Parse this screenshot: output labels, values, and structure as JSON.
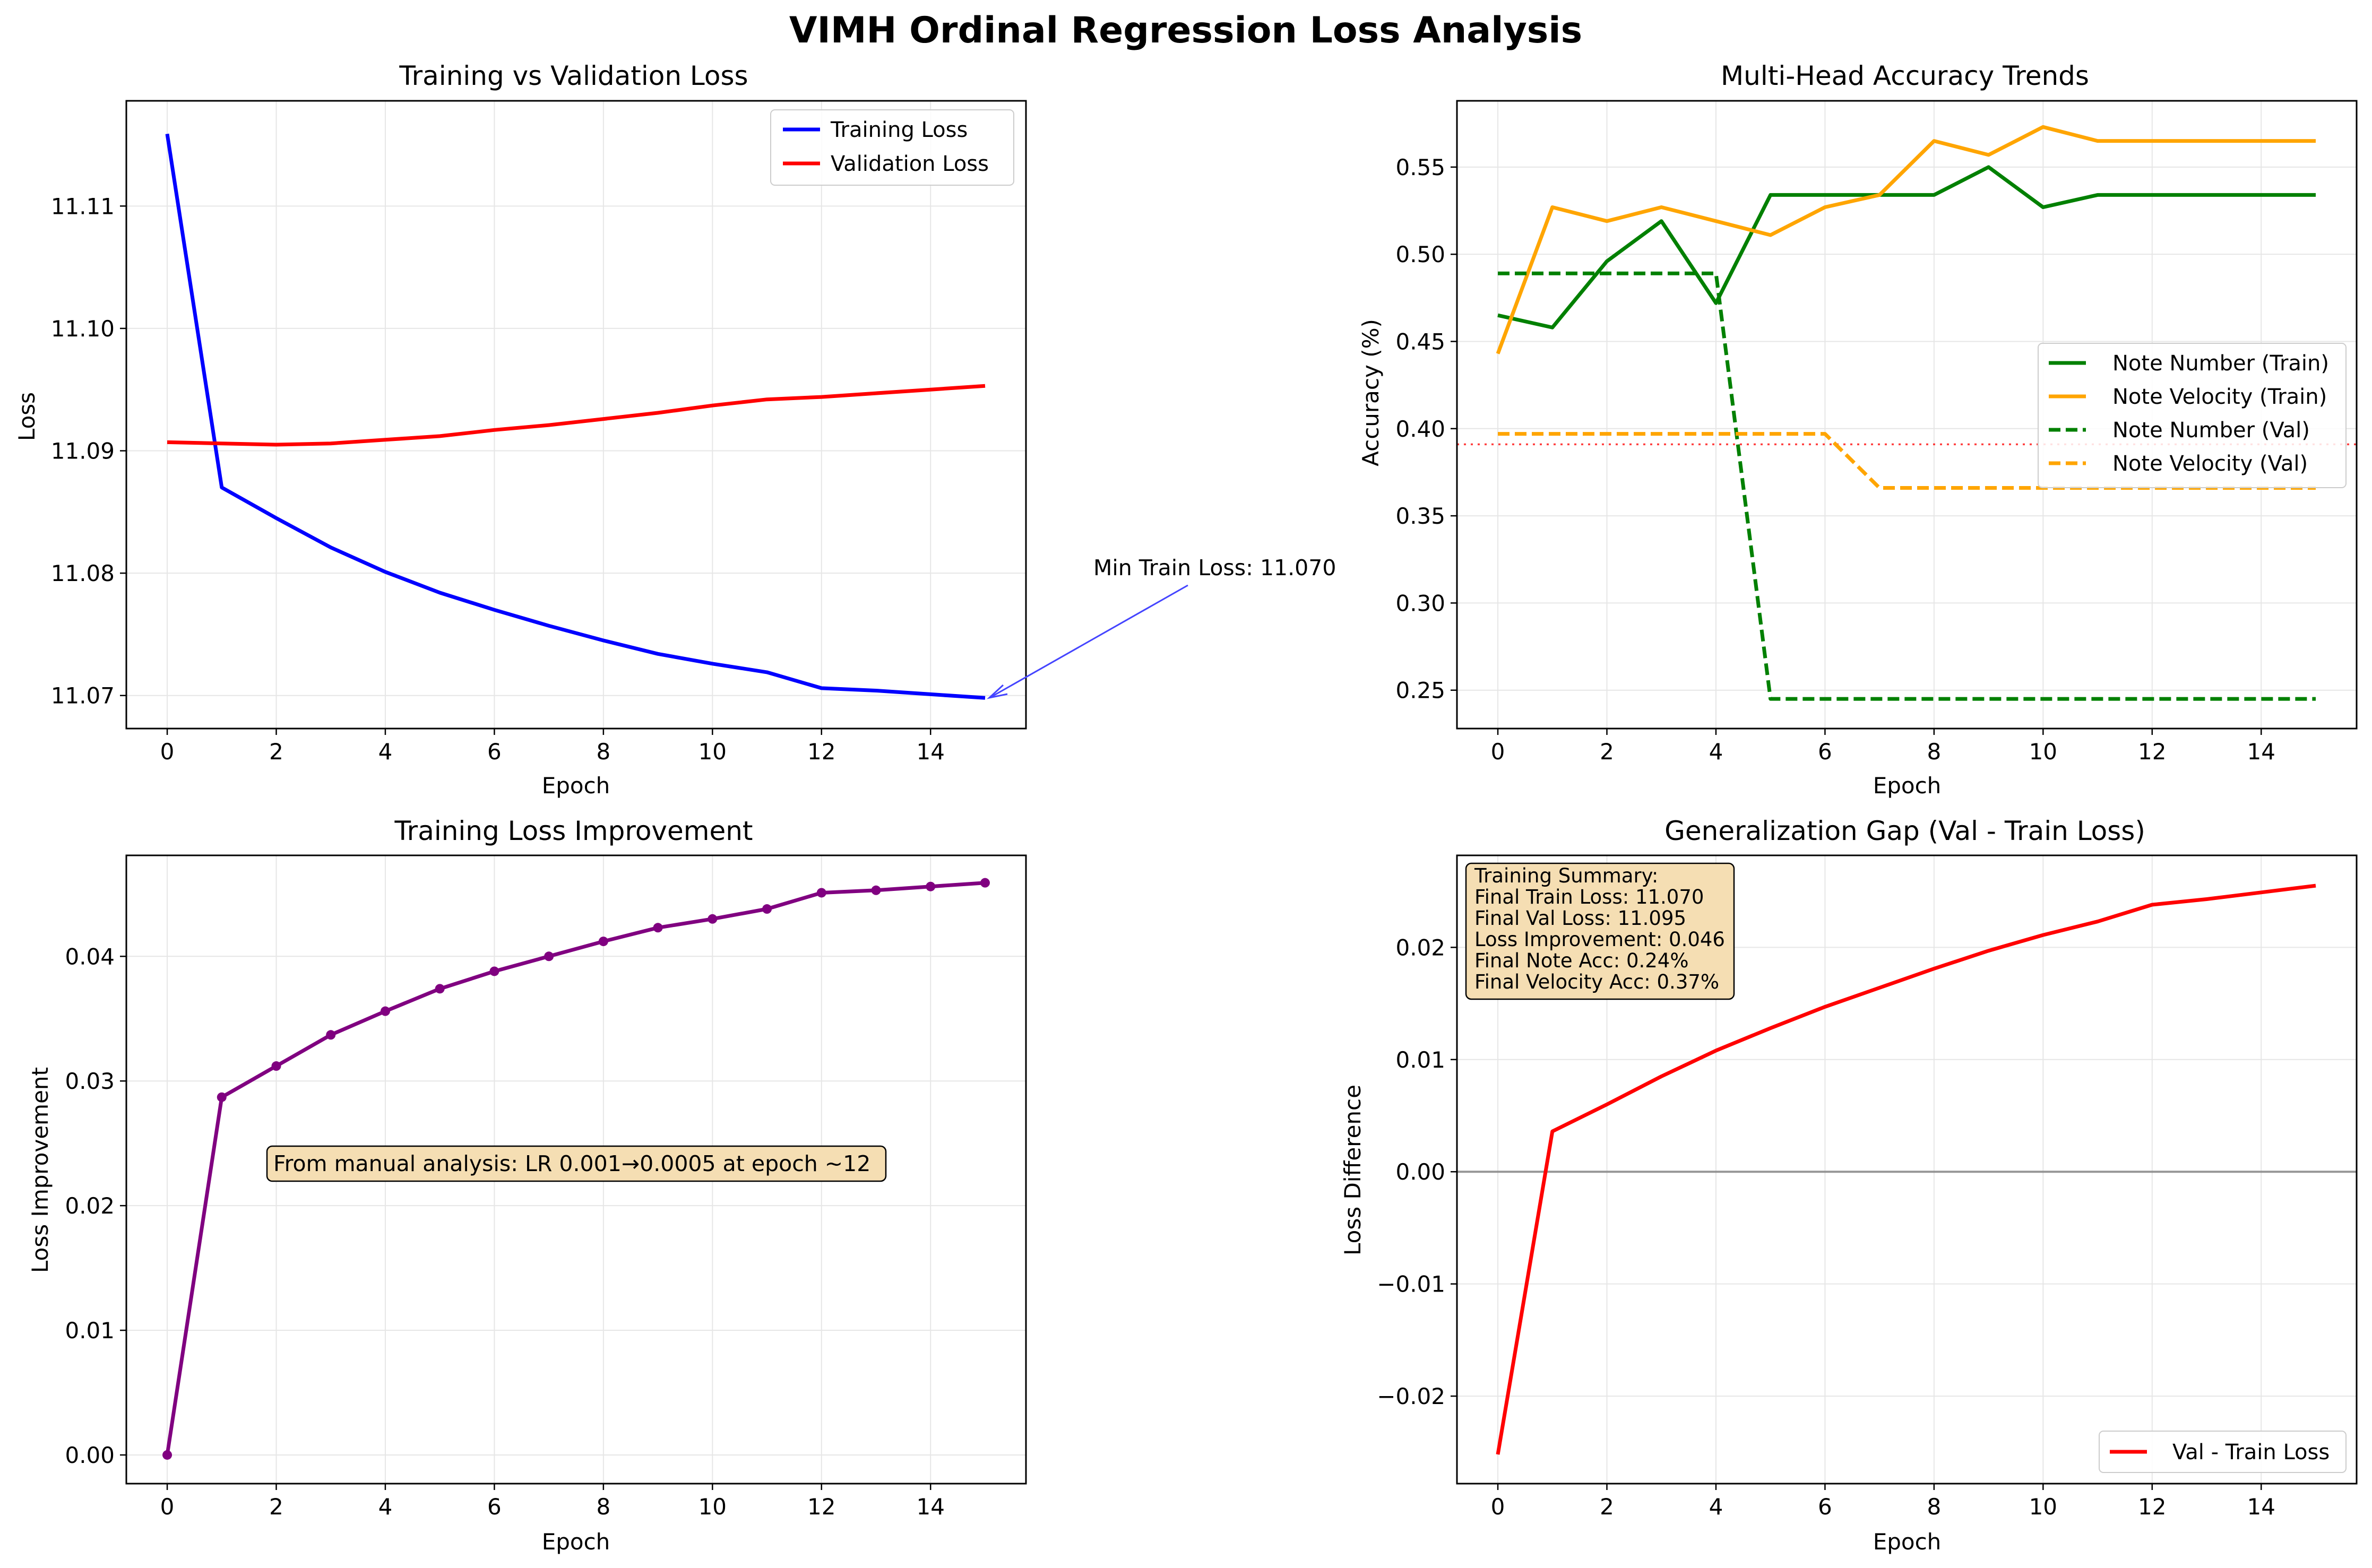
{
  "figure": {
    "title": "VIMH Ordinal Regression Loss Analysis"
  },
  "chart_data": [
    {
      "type": "line",
      "title": "Training vs Validation Loss",
      "xlabel": "Epoch",
      "ylabel": "Loss",
      "xlim": [
        -0.75,
        15.75
      ],
      "ylim": [
        11.0673,
        11.1186
      ],
      "xticks": [
        0,
        2,
        4,
        6,
        8,
        10,
        12,
        14
      ],
      "yticks": [
        11.07,
        11.08,
        11.09,
        11.1,
        11.11
      ],
      "ytick_labels": [
        "11.07",
        "11.08",
        "11.09",
        "11.10",
        "11.11"
      ],
      "grid": true,
      "legend": "upper right",
      "x": [
        0,
        1,
        2,
        3,
        4,
        5,
        6,
        7,
        8,
        9,
        10,
        11,
        12,
        13,
        14,
        15
      ],
      "series": [
        {
          "name": "Training Loss",
          "color": "#0000ff",
          "style": "solid",
          "values": [
            11.1159,
            11.087,
            11.0845,
            11.0821,
            11.0801,
            11.0784,
            11.077,
            11.0757,
            11.0745,
            11.0734,
            11.0726,
            11.0719,
            11.0706,
            11.0704,
            11.0701,
            11.0698
          ]
        },
        {
          "name": "Validation Loss",
          "color": "#ff0000",
          "style": "solid",
          "values": [
            11.0907,
            11.0906,
            11.0905,
            11.0906,
            11.0909,
            11.0912,
            11.0917,
            11.0921,
            11.0926,
            11.0931,
            11.0937,
            11.0942,
            11.0944,
            11.0947,
            11.095,
            11.0953
          ]
        }
      ],
      "annotation": {
        "text": "Min Train Loss: 11.070",
        "point": [
          15,
          11.0698
        ],
        "color": "#4444ff"
      }
    },
    {
      "type": "line",
      "title": "Multi-Head Accuracy Trends",
      "xlabel": "Epoch",
      "ylabel": "Accuracy (%)",
      "xlim": [
        -0.75,
        15.75
      ],
      "ylim": [
        0.228,
        0.588
      ],
      "xticks": [
        0,
        2,
        4,
        6,
        8,
        10,
        12,
        14
      ],
      "yticks": [
        0.25,
        0.3,
        0.35,
        0.4,
        0.45,
        0.5,
        0.55
      ],
      "ytick_labels": [
        "0.25",
        "0.30",
        "0.35",
        "0.40",
        "0.45",
        "0.50",
        "0.55"
      ],
      "grid": true,
      "legend": "center right",
      "x": [
        0,
        1,
        2,
        3,
        4,
        5,
        6,
        7,
        8,
        9,
        10,
        11,
        12,
        13,
        14,
        15
      ],
      "series": [
        {
          "name": "Note Number (Train)",
          "color": "#008000",
          "style": "solid",
          "values": [
            0.465,
            0.458,
            0.496,
            0.519,
            0.472,
            0.534,
            0.534,
            0.534,
            0.534,
            0.55,
            0.527,
            0.534,
            0.534,
            0.534,
            0.534,
            0.534
          ]
        },
        {
          "name": "Note Velocity (Train)",
          "color": "#ffa500",
          "style": "solid",
          "values": [
            0.443,
            0.527,
            0.519,
            0.527,
            0.519,
            0.511,
            0.527,
            0.534,
            0.565,
            0.557,
            0.573,
            0.565,
            0.565,
            0.565,
            0.565,
            0.565
          ]
        },
        {
          "name": "Note Number (Val)",
          "color": "#008000",
          "style": "dashed",
          "values": [
            0.489,
            0.489,
            0.489,
            0.489,
            0.489,
            0.245,
            0.245,
            0.245,
            0.245,
            0.245,
            0.245,
            0.245,
            0.245,
            0.245,
            0.245,
            0.245
          ]
        },
        {
          "name": "Note Velocity (Val)",
          "color": "#ffa500",
          "style": "dashed",
          "values": [
            0.397,
            0.397,
            0.397,
            0.397,
            0.397,
            0.397,
            0.397,
            0.366,
            0.366,
            0.366,
            0.366,
            0.366,
            0.366,
            0.366,
            0.366,
            0.366
          ]
        }
      ],
      "reference_line": {
        "y": 0.391,
        "color": "#ff0000",
        "style": "dotted"
      }
    },
    {
      "type": "line",
      "title": "Training Loss Improvement",
      "xlabel": "Epoch",
      "ylabel": "Loss Improvement",
      "xlim": [
        -0.75,
        15.75
      ],
      "ylim": [
        -0.0023,
        0.0481
      ],
      "xticks": [
        0,
        2,
        4,
        6,
        8,
        10,
        12,
        14
      ],
      "yticks": [
        0.0,
        0.01,
        0.02,
        0.03,
        0.04
      ],
      "ytick_labels": [
        "0.00",
        "0.01",
        "0.02",
        "0.03",
        "0.04"
      ],
      "grid": true,
      "x": [
        0,
        1,
        2,
        3,
        4,
        5,
        6,
        7,
        8,
        9,
        10,
        11,
        12,
        13,
        14,
        15
      ],
      "series": [
        {
          "color": "#800080",
          "style": "solid",
          "markers": true,
          "values": [
            0.0,
            0.0287,
            0.0312,
            0.0337,
            0.0356,
            0.0374,
            0.0388,
            0.04,
            0.0412,
            0.0423,
            0.043,
            0.0438,
            0.0451,
            0.0453,
            0.0456,
            0.0459
          ]
        }
      ],
      "annotation": {
        "text": "From manual analysis: LR 0.001→0.0005 at epoch ~12",
        "position": "center-left"
      }
    },
    {
      "type": "line",
      "title": "Generalization Gap (Val - Train Loss)",
      "xlabel": "Epoch",
      "ylabel": "Loss Difference",
      "xlim": [
        -0.75,
        15.75
      ],
      "ylim": [
        -0.0278,
        0.0282
      ],
      "xticks": [
        0,
        2,
        4,
        6,
        8,
        10,
        12,
        14
      ],
      "yticks": [
        -0.02,
        -0.01,
        0.0,
        0.01,
        0.02
      ],
      "ytick_labels": [
        "−0.02",
        "−0.01",
        "0.00",
        "0.01",
        "0.02"
      ],
      "grid": true,
      "legend": "lower right",
      "x": [
        0,
        1,
        2,
        3,
        4,
        5,
        6,
        7,
        8,
        9,
        10,
        11,
        12,
        13,
        14,
        15
      ],
      "series": [
        {
          "name": "Val - Train Loss",
          "color": "#ff0000",
          "style": "solid",
          "values": [
            -0.0252,
            0.0036,
            0.006,
            0.0085,
            0.0108,
            0.0128,
            0.0147,
            0.0164,
            0.0181,
            0.0197,
            0.0211,
            0.0223,
            0.0238,
            0.0243,
            0.0249,
            0.0255
          ]
        }
      ],
      "zero_line": {
        "y": 0.0,
        "color": "#808080"
      },
      "summary_box": {
        "lines": [
          "Training Summary:",
          "Final Train Loss: 11.070",
          "Final Val Loss: 11.095",
          "Loss Improvement: 0.046",
          "Final Note Acc: 0.24%",
          "Final Velocity Acc: 0.37%"
        ]
      }
    }
  ]
}
